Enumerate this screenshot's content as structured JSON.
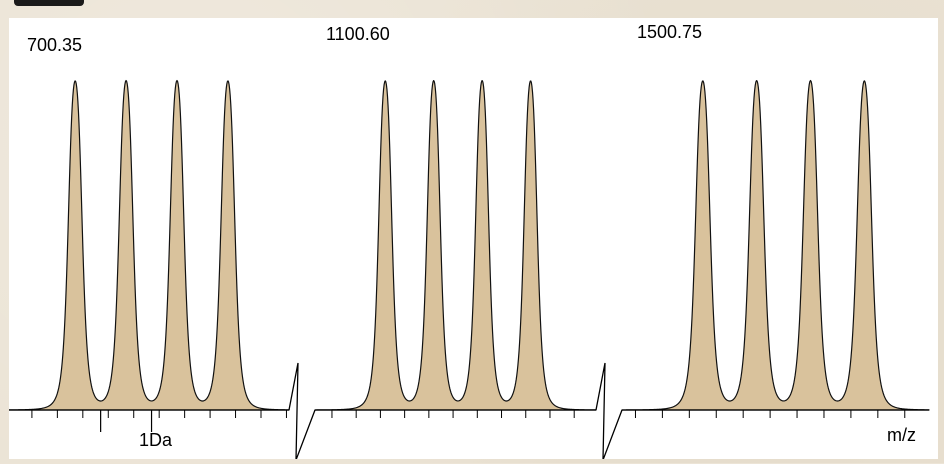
{
  "chart_data": {
    "type": "area",
    "title": "",
    "xlabel": "m/z",
    "ylabel": "",
    "scale_bar_label": "1Da",
    "grid": false,
    "fill_color": "#d9c29c",
    "line_color": "#111111",
    "panels": [
      {
        "label": "700.35",
        "x": [
          700.35,
          701.35,
          702.35,
          703.35
        ],
        "values": [
          1.0,
          1.0,
          1.0,
          1.0
        ],
        "xlim": [
          699.05,
          704.55
        ]
      },
      {
        "label": "1100.60",
        "x": [
          1100.6,
          1101.6,
          1102.6,
          1103.6
        ],
        "values": [
          1.0,
          1.0,
          1.0,
          1.0
        ],
        "xlim": [
          1099.15,
          1104.95
        ]
      },
      {
        "label": "1500.75",
        "x": [
          1500.75,
          1501.75,
          1502.75,
          1503.75
        ],
        "values": [
          1.0,
          1.0,
          1.0,
          1.0
        ],
        "xlim": [
          1499.25,
          1504.95
        ]
      }
    ],
    "ylim": [
      0,
      1.04
    ],
    "axis_breaks": 2
  }
}
